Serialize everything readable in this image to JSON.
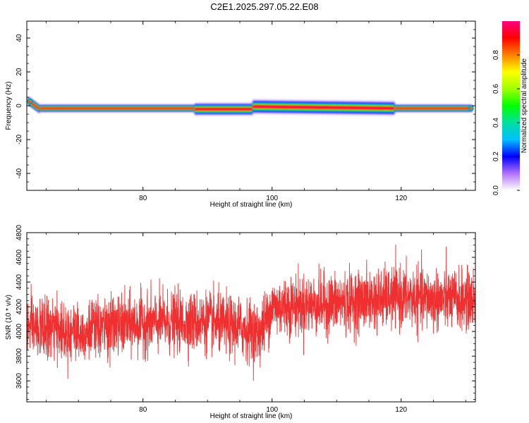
{
  "title": "C2E1.2025.297.05.22.E08",
  "chart_data": [
    {
      "type": "heatmap",
      "xlabel": "Height of straight line (km)",
      "ylabel": "Frequency (Hz)",
      "xlim": [
        62,
        131.5
      ],
      "ylim": [
        -50,
        50
      ],
      "xticks": [
        "80",
        "100",
        "120"
      ],
      "xtick_values": [
        80,
        100,
        120
      ],
      "yticks": [
        "40",
        "20",
        "0",
        "-20",
        "-40"
      ],
      "ytick_values": [
        40,
        20,
        0,
        -20,
        -40
      ],
      "colorbar": {
        "label": "Normalized spectral amplitude",
        "range": [
          0,
          1
        ],
        "ticks": [
          "0.0",
          "0.2",
          "0.4",
          "0.6",
          "0.8"
        ],
        "tick_values": [
          0.0,
          0.2,
          0.4,
          0.6,
          0.8
        ],
        "stops": [
          "#ffffff",
          "#b070ff",
          "#0000ff",
          "#00c0ff",
          "#00e0a0",
          "#00ff00",
          "#a0ff00",
          "#ffff00",
          "#ff8000",
          "#ff0000",
          "#ff0080"
        ]
      },
      "ridge": {
        "frequency_hz": -1.5,
        "segments": [
          {
            "x": [
              62.2,
              64
            ],
            "f": [
              3,
              -2
            ],
            "spread": 3
          },
          {
            "x": [
              64,
              88
            ],
            "f": [
              -1.5,
              -1.5
            ],
            "spread": 2.5
          },
          {
            "x": [
              88,
              97
            ],
            "f": [
              -2,
              -2
            ],
            "spread": 4
          },
          {
            "x": [
              97,
              119
            ],
            "f": [
              -0.5,
              -1.5
            ],
            "spread": 4.5
          },
          {
            "x": [
              119,
              131
            ],
            "f": [
              -1.5,
              -1.5
            ],
            "spread": 2.5
          }
        ]
      },
      "grid": false
    },
    {
      "type": "line",
      "xlabel": "Height of straight line (km)",
      "ylabel": "SNR (10 * v/v)",
      "xlim": [
        62,
        131.5
      ],
      "ylim": [
        3430,
        4800
      ],
      "xticks": [
        "80",
        "100",
        "120"
      ],
      "xtick_values": [
        80,
        100,
        120
      ],
      "yticks": [
        "3600",
        "3800",
        "4000",
        "4200",
        "4400",
        "4600",
        "4800"
      ],
      "ytick_values": [
        3600,
        3800,
        4000,
        4200,
        4400,
        4600,
        4800
      ],
      "color": "#f03030",
      "trend_x": [
        62,
        70,
        80,
        90,
        96,
        98,
        100,
        110,
        120,
        125,
        131.5
      ],
      "trend_y": [
        4030,
        4000,
        4070,
        4080,
        4020,
        3980,
        4200,
        4230,
        4280,
        4260,
        4250
      ],
      "noise_sd": 120,
      "num_points": 3000,
      "grid": false
    }
  ]
}
